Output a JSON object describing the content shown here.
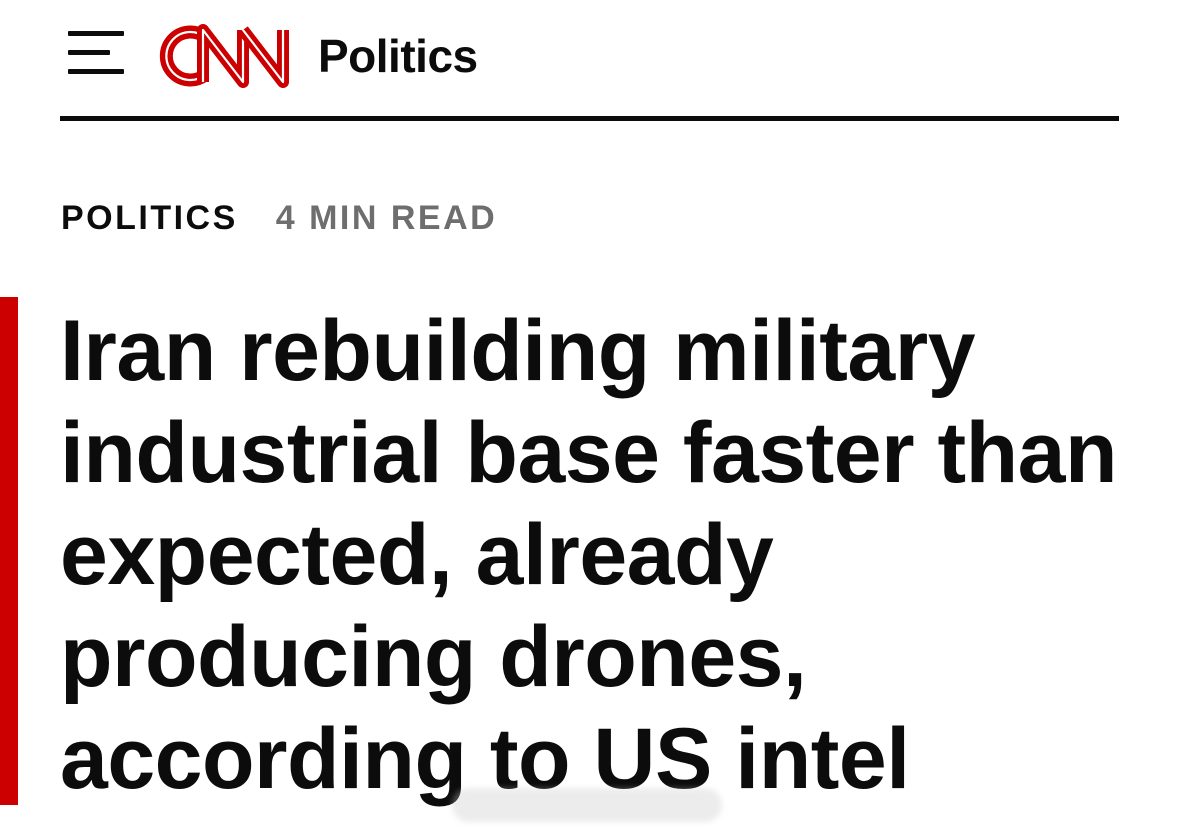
{
  "header": {
    "brand": "CNN",
    "section_label": "Politics",
    "menu_icon": "hamburger-menu-icon",
    "brand_color": "#cc0000"
  },
  "article": {
    "section_tag": "POLITICS",
    "read_time": "4 MIN READ",
    "headline": "Iran rebuilding military industrial base faster than expected, already producing drones, according to US intel",
    "accent_color": "#cc0000"
  }
}
